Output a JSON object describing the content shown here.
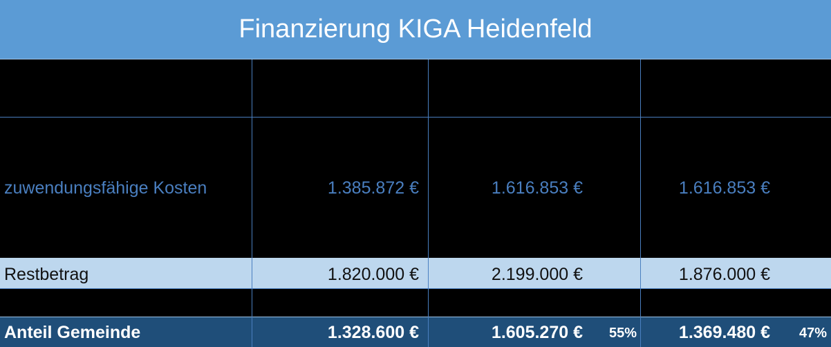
{
  "header": {
    "title": "Finanzierung KIGA Heidenfeld"
  },
  "table": {
    "rows": [
      {
        "label": "zuwendungsfähige Kosten",
        "cells": [
          "1.385.872 €",
          "1.616.853 €",
          "1.616.853 €"
        ]
      },
      {
        "label": "Restbetrag",
        "cells": [
          "1.820.000 €",
          "2.199.000 €",
          "1.876.000 €"
        ]
      },
      {
        "label": "Anteil Gemeinde",
        "cells": [
          "1.328.600 €",
          "1.605.270 €",
          "1.369.480 €"
        ],
        "shares": [
          "55%",
          "47%"
        ]
      }
    ]
  }
}
